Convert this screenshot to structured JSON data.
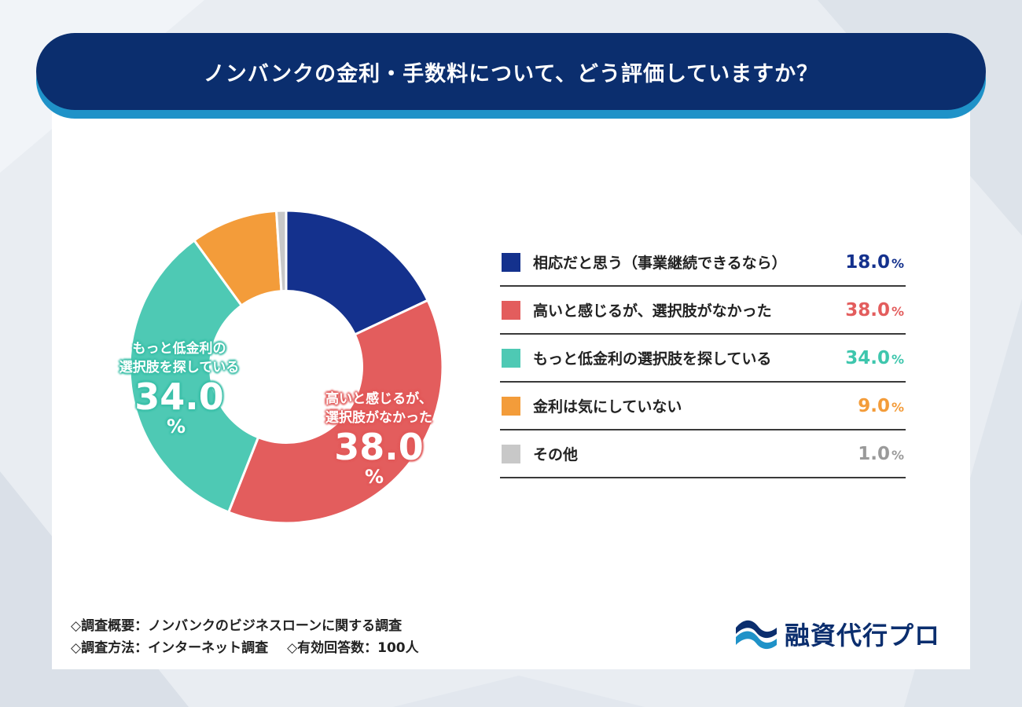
{
  "title": "ノンバンクの金利・手数料について、どう評価していますか？",
  "chart_data": {
    "type": "pie",
    "title": "ノンバンクの金利・手数料について、どう評価していますか？",
    "categories": [
      "相応だと思う（事業継続できるなら）",
      "高いと感じるが、選択肢がなかった",
      "もっと低金利の選択肢を探している",
      "金利は気にしていない",
      "その他"
    ],
    "values": [
      18.0,
      38.0,
      34.0,
      9.0,
      1.0
    ],
    "value_labels": [
      "18.0",
      "38.0",
      "34.0",
      "9.0",
      "1.0"
    ],
    "unit": "%",
    "colors": [
      "#14318d",
      "#e35d5d",
      "#4ec9b4",
      "#f39c3a",
      "#c8c8c8"
    ],
    "legend_value_colors": [
      "#14318d",
      "#e35d5d",
      "#3ec6ad",
      "#f39c3a",
      "#9a9a9a"
    ],
    "donut": true,
    "legend_position": "right"
  },
  "slice_labels": {
    "red": {
      "line1": "高いと感じるが、",
      "line2": "選択肢がなかった",
      "value": "38.0",
      "unit": "%"
    },
    "teal": {
      "line1": "もっと低金利の",
      "line2": "選択肢を探している",
      "value": "34.0",
      "unit": "%"
    }
  },
  "footer": {
    "line1": "◇調査概要：ノンバンクのビジネスローンに関する調査",
    "line2a": "◇調査方法：インターネット調査",
    "line2b": "◇有効回答数：100人"
  },
  "logo": {
    "text": "融資代行プロ",
    "colors": {
      "wave_dark": "#0b2e6e",
      "wave_light": "#1f92c8"
    }
  }
}
